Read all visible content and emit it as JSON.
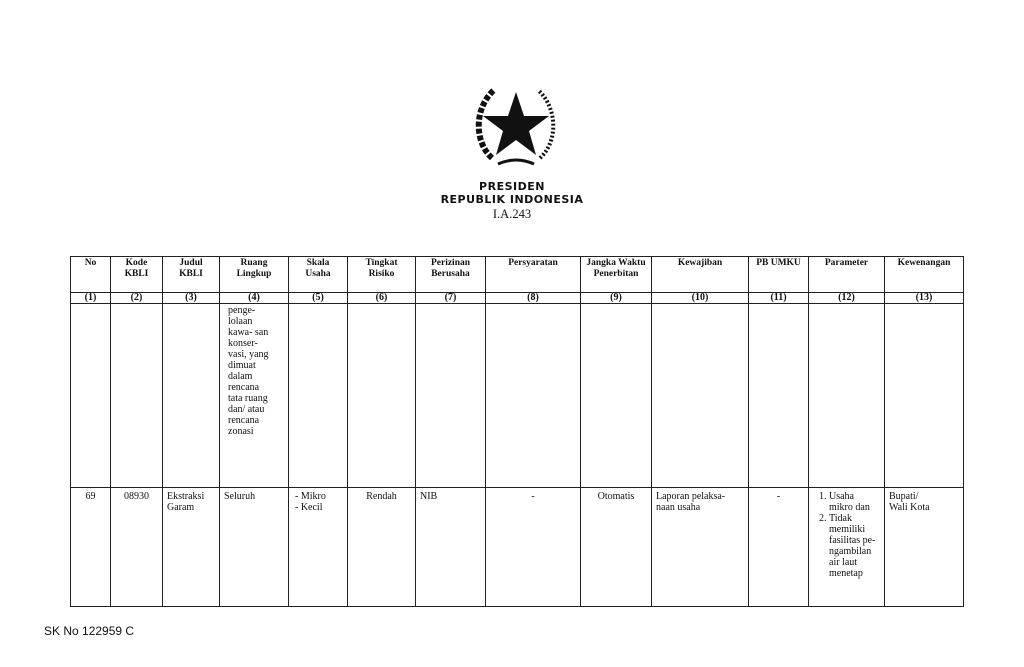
{
  "header": {
    "line1": "PRESIDEN",
    "line2": "REPUBLIK INDONESIA",
    "code": "I.A.243"
  },
  "table": {
    "columns": [
      "No",
      "Kode KBLI",
      "Judul KBLI",
      "Ruang Lingkup",
      "Skala Usaha",
      "Tingkat Risiko",
      "Perizinan Berusaha",
      "Persyaratan",
      "Jangka Waktu Penerbitan",
      "Kewajiban",
      "PB UMKU",
      "Parameter",
      "Kewenangan"
    ],
    "column_numbers": [
      "(1)",
      "(2)",
      "(3)",
      "(4)",
      "(5)",
      "(6)",
      "(7)",
      "(8)",
      "(9)",
      "(10)",
      "(11)",
      "(12)",
      "(13)"
    ],
    "continuation_ruang_lingkup": "penge- lolaan kawa- san konser- vasi, yang dimuat dalam rencana tata ruang dan/ atau rencana zonasi",
    "row": {
      "no": "69",
      "kode": "08930",
      "judul": "Ekstraksi Garam",
      "ruang": "Seluruh",
      "skala": [
        "- Mikro",
        "- Kecil"
      ],
      "risiko": "Rendah",
      "perizinan": "NIB",
      "persyaratan": "-",
      "jangka": "Otomatis",
      "kewajiban": "Laporan pelaksa- naan usaha",
      "pb_umku": "-",
      "parameter": [
        "Usaha mikro dan",
        "Tidak memiliki fasilitas pe- ngambilan air laut menetap"
      ],
      "kewenangan": "Bupati/ Wali Kota"
    }
  },
  "footer": {
    "sk": "SK No 122959 C"
  }
}
